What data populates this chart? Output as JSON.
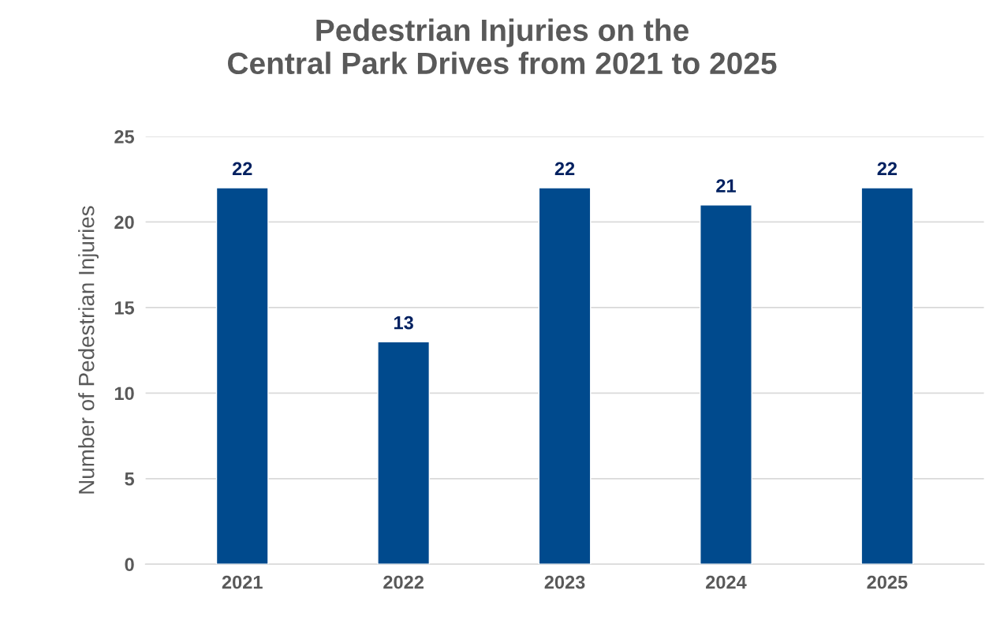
{
  "chart_data": {
    "type": "bar",
    "title": "Pedestrian Injuries on the\nCentral Park Drives from 2021 to 2025",
    "ylabel": "Number of Pedestrian Injuries",
    "categories": [
      "2021",
      "2022",
      "2023",
      "2024",
      "2025"
    ],
    "values": [
      22,
      13,
      22,
      21,
      22
    ],
    "color": "#004a8d",
    "ylim": [
      0,
      25
    ],
    "yticks": [
      0,
      5,
      10,
      15,
      20,
      25
    ],
    "grid": "y",
    "data_labels": true
  }
}
